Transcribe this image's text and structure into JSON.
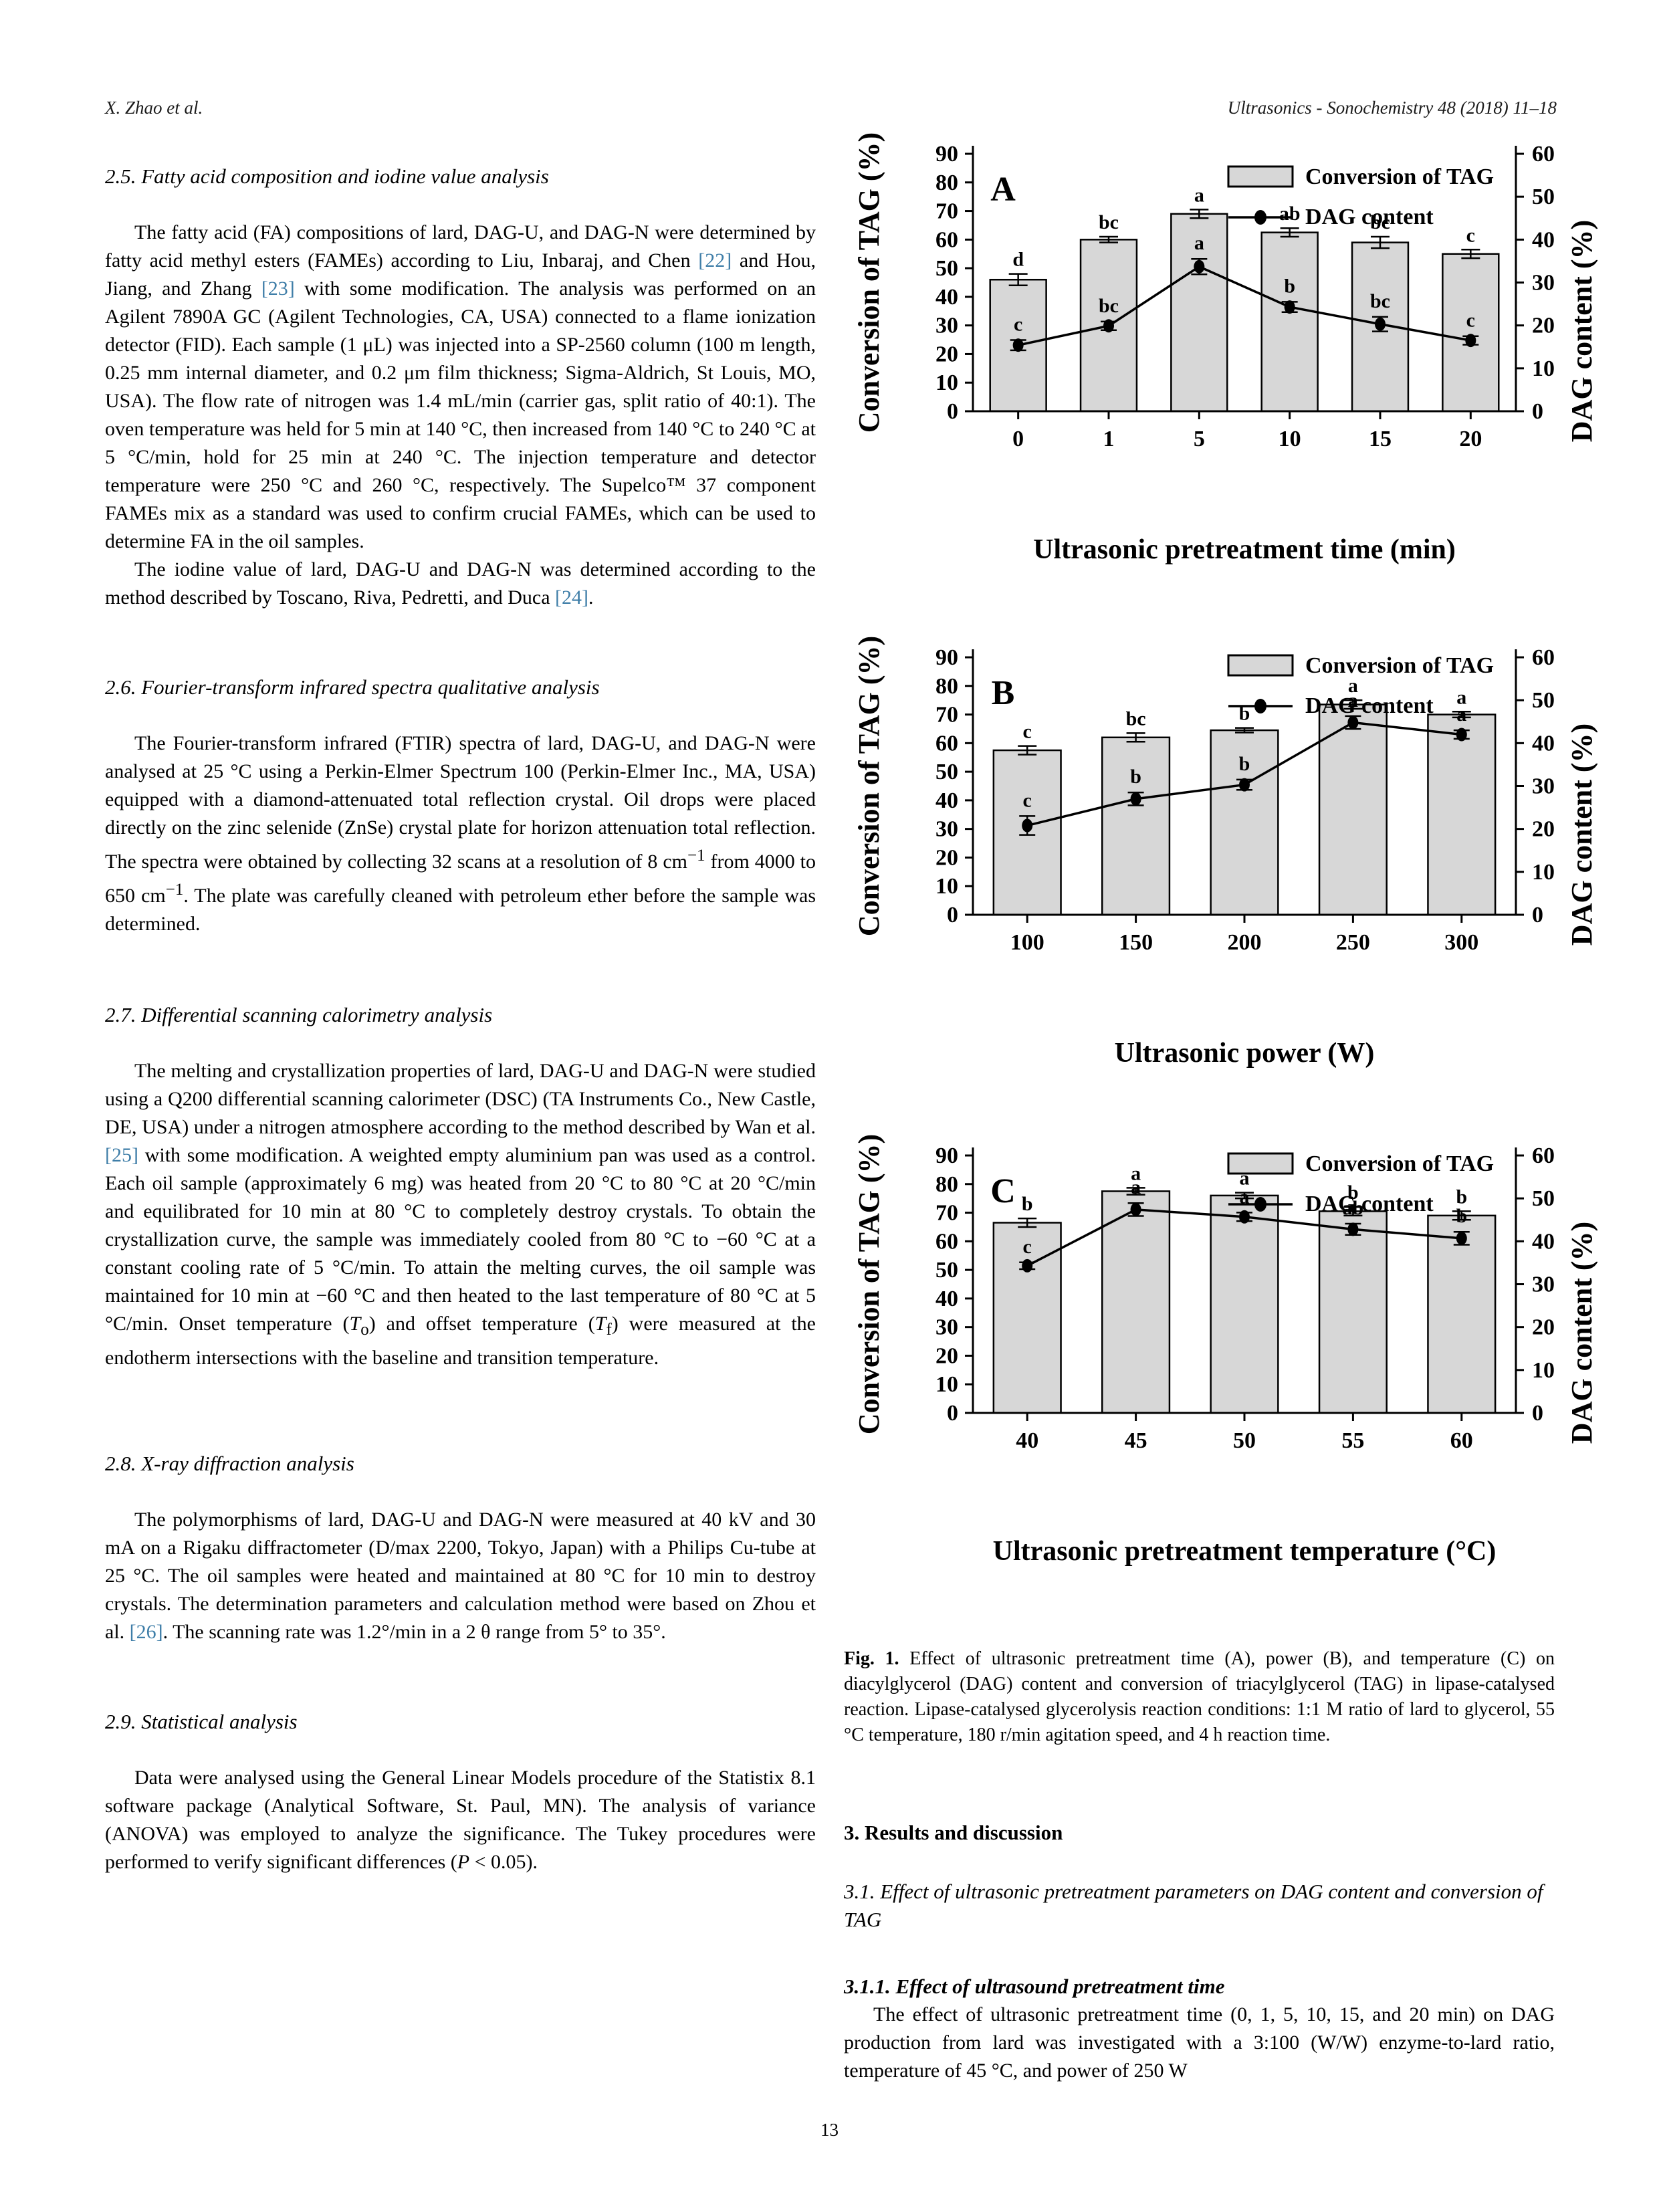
{
  "header": {
    "left": "X. Zhao et al.",
    "right": "Ultrasonics - Sonochemistry 48 (2018) 11–18"
  },
  "page_number": "13",
  "colors": {
    "citation": "#3f7ea8",
    "bar_fill": "#d7d7d7",
    "ink": "#000000"
  },
  "left_column": {
    "sections": [
      {
        "heading": "2.5. Fatty acid composition and iodine value analysis",
        "paragraphs": [
          {
            "segs": [
              {
                "t": "The fatty acid (FA) compositions of lard, DAG-U, and DAG-N were determined by fatty acid methyl esters (FAMEs) according to Liu, Inbaraj, and Chen "
              },
              {
                "t": "[22]",
                "c": true
              },
              {
                "t": " and Hou, Jiang, and Zhang "
              },
              {
                "t": "[23]",
                "c": true
              },
              {
                "t": " with some modification. The analysis was performed on an Agilent 7890A GC (Agilent Technologies, CA, USA) connected to a flame ionization detector (FID). Each sample (1 μL) was injected into a SP-2560 column (100 m length, 0.25 mm internal diameter, and 0.2 μm film thickness; Sigma-Aldrich, St Louis, MO, USA). The flow rate of nitrogen was 1.4 mL/min (carrier gas, split ratio of 40:1). The oven temperature was held for 5 min at 140 °C, then increased from 140 °C to 240 °C at 5 °C/min, hold for 25 min at 240 °C. The injection temperature and detector temperature were 250 °C and 260 °C, respectively. The Supelco™ 37 component FAMEs mix as a standard was used to confirm crucial FAMEs, which can be used to determine FA in the oil samples."
              }
            ]
          },
          {
            "segs": [
              {
                "t": "The iodine value of lard, DAG-U and DAG-N was determined according to the method described by Toscano, Riva, Pedretti, and Duca "
              },
              {
                "t": "[24]",
                "c": true
              },
              {
                "t": "."
              }
            ]
          }
        ]
      },
      {
        "heading": "2.6. Fourier-transform infrared spectra qualitative analysis",
        "paragraphs": [
          {
            "segs": [
              {
                "t": "The Fourier-transform infrared (FTIR) spectra of lard, DAG-U, and DAG-N were analysed at 25 °C using a Perkin-Elmer Spectrum 100 (Perkin-Elmer Inc., MA, USA) equipped with a diamond-attenuated total reflection crystal. Oil drops were placed directly on the zinc selenide (ZnSe) crystal plate for horizon attenuation total reflection. The spectra were obtained by collecting 32 scans at a resolution of 8 cm"
              },
              {
                "t": "−1",
                "sup": true
              },
              {
                "t": " from 4000 to 650 cm"
              },
              {
                "t": "−1",
                "sup": true
              },
              {
                "t": ". The plate was carefully cleaned with petroleum ether before the sample was determined."
              }
            ]
          }
        ]
      },
      {
        "heading": "2.7. Differential scanning calorimetry analysis",
        "paragraphs": [
          {
            "segs": [
              {
                "t": "The melting and crystallization properties of lard, DAG-U and DAG-N were studied using a Q200 differential scanning calorimeter (DSC) (TA Instruments Co., New Castle, DE, USA) under a nitrogen atmosphere according to the method described by Wan et al. "
              },
              {
                "t": "[25]",
                "c": true
              },
              {
                "t": " with some modification. A weighted empty aluminium pan was used as a control. Each oil sample (approximately 6 mg) was heated from 20 °C to 80 °C at 20 °C/min and equilibrated for 10 min at 80 °C to completely destroy crystals. To obtain the crystallization curve, the sample was immediately cooled from 80 °C to −60 °C at a constant cooling rate of 5 °C/min. To attain the melting curves, the oil sample was maintained for 10 min at −60 °C and then heated to the last temperature of 80 °C at 5 °C/min. Onset temperature ("
              },
              {
                "t": "T",
                "i": true
              },
              {
                "t": "o",
                "sub": true
              },
              {
                "t": ") and offset temperature ("
              },
              {
                "t": "T",
                "i": true
              },
              {
                "t": "f",
                "sub": true
              },
              {
                "t": ") were measured at the endotherm intersections with the baseline and transition temperature."
              }
            ]
          }
        ]
      },
      {
        "heading": "2.8. X-ray diffraction analysis",
        "paragraphs": [
          {
            "segs": [
              {
                "t": "The polymorphisms of lard, DAG-U and DAG-N were measured at 40 kV and 30 mA on a Rigaku diffractometer (D/max 2200, Tokyo, Japan) with a Philips Cu-tube at 25 °C. The oil samples were heated and maintained at 80 °C for 10 min to destroy crystals. The determination parameters and calculation method were based on Zhou et al. "
              },
              {
                "t": "[26]",
                "c": true
              },
              {
                "t": ". The scanning rate was 1.2°/min in a 2 θ range from 5° to 35°."
              }
            ]
          }
        ]
      },
      {
        "heading": "2.9. Statistical analysis",
        "paragraphs": [
          {
            "segs": [
              {
                "t": "Data were analysed using the General Linear Models procedure of the Statistix 8.1 software package (Analytical Software, St. Paul, MN). The analysis of variance (ANOVA) was employed to analyze the significance. The Tukey procedures were performed to verify significant differences ("
              },
              {
                "t": "P",
                "i": true
              },
              {
                "t": " < 0.05)."
              }
            ]
          }
        ]
      }
    ]
  },
  "right_column": {
    "caption_lead": "Fig. 1.",
    "caption_rest": " Effect of ultrasonic pretreatment time (A), power (B), and temperature (C) on diacylglycerol (DAG) content and conversion of triacylglycerol (TAG) in lipase-catalysed reaction. Lipase-catalysed glycerolysis reaction conditions: 1:1 M ratio of lard to glycerol, 55 °C temperature, 180 r/min agitation speed, and 4 h reaction time.",
    "results_heading": "3. Results and discussion",
    "sec31_heading": "3.1. Effect of ultrasonic pretreatment parameters on DAG content and conversion of TAG",
    "sec311_heading": "3.1.1. Effect of ultrasound pretreatment time",
    "sec311_paragraph": "The effect of ultrasonic pretreatment time (0, 1, 5, 10, 15, and 20 min) on DAG production from lard was investigated with a 3:100 (W/W) enzyme-to-lard ratio, temperature of 45 °C, and power of 250 W"
  },
  "chart_data": [
    {
      "type": "bar+line-dual-axis",
      "panel": "A",
      "title": "",
      "xlabel": "Ultrasonic pretreatment time (min)",
      "ylabel_left": "Conversion of TAG (%)",
      "ylabel_right": "DAG content (%)",
      "ylim_left": [
        0,
        90
      ],
      "ytick_step_left": 10,
      "ylim_right": [
        0,
        60
      ],
      "ytick_step_right": 10,
      "grid": false,
      "legend": [
        "Conversion of TAG",
        "DAG content"
      ],
      "legend_position": "top-right-inside",
      "categories": [
        "0",
        "1",
        "5",
        "10",
        "15",
        "20"
      ],
      "bars": {
        "name": "Conversion of TAG",
        "axis": "left",
        "values": [
          46,
          60,
          69,
          62.5,
          59,
          55
        ],
        "errors": [
          2,
          1,
          1.5,
          1.5,
          2,
          1.5
        ],
        "sig_labels": [
          "d",
          "bc",
          "a",
          "ab",
          "bc",
          "c"
        ]
      },
      "line": {
        "name": "DAG content",
        "axis": "right",
        "values": [
          15.4,
          19.9,
          33.7,
          24.3,
          20.3,
          16.5
        ],
        "errors": [
          1.2,
          1.0,
          1.8,
          1.2,
          1.7,
          1.0
        ],
        "sig_labels": [
          "c",
          "bc",
          "a",
          "b",
          "bc",
          "c"
        ]
      }
    },
    {
      "type": "bar+line-dual-axis",
      "panel": "B",
      "title": "",
      "xlabel": "Ultrasonic power (W)",
      "ylabel_left": "Conversion of TAG (%)",
      "ylabel_right": "DAG content (%)",
      "ylim_left": [
        0,
        90
      ],
      "ytick_step_left": 10,
      "ylim_right": [
        0,
        60
      ],
      "ytick_step_right": 10,
      "grid": false,
      "legend": [
        "Conversion of TAG",
        "DAG content"
      ],
      "legend_position": "top-right-inside",
      "categories": [
        "100",
        "150",
        "200",
        "250",
        "300"
      ],
      "bars": {
        "name": "Conversion of TAG",
        "axis": "left",
        "values": [
          57.5,
          62,
          64.5,
          73.5,
          70
        ],
        "errors": [
          1.5,
          1.5,
          0.8,
          1.5,
          1.0
        ],
        "sig_labels": [
          "c",
          "bc",
          "b",
          "a",
          "a"
        ]
      },
      "line": {
        "name": "DAG content",
        "axis": "right",
        "values": [
          20.8,
          27.0,
          30.3,
          44.8,
          42.0
        ],
        "errors": [
          2.2,
          1.5,
          1.2,
          1.5,
          1.0
        ],
        "sig_labels": [
          "c",
          "b",
          "b",
          "a",
          "a"
        ]
      }
    },
    {
      "type": "bar+line-dual-axis",
      "panel": "C",
      "title": "",
      "xlabel": "Ultrasonic pretreatment temperature (°C)",
      "ylabel_left": "Conversion of TAG (%)",
      "ylabel_right": "DAG content (%)",
      "ylim_left": [
        0,
        90
      ],
      "ytick_step_left": 10,
      "ylim_right": [
        0,
        60
      ],
      "ytick_step_right": 10,
      "grid": false,
      "legend": [
        "Conversion of TAG",
        "DAG content"
      ],
      "legend_position": "top-right-inside",
      "categories": [
        "40",
        "45",
        "50",
        "55",
        "60"
      ],
      "bars": {
        "name": "Conversion of TAG",
        "axis": "left",
        "values": [
          66.5,
          77.5,
          76,
          70.5,
          69
        ],
        "errors": [
          1.5,
          1.2,
          1.0,
          1.5,
          1.5
        ],
        "sig_labels": [
          "b",
          "a",
          "a",
          "b",
          "b"
        ]
      },
      "line": {
        "name": "DAG content",
        "axis": "right",
        "values": [
          34.3,
          47.4,
          45.7,
          42.8,
          40.7
        ],
        "errors": [
          0.8,
          1.5,
          1.0,
          1.3,
          1.5
        ],
        "sig_labels": [
          "c",
          "a",
          "a",
          "ab",
          "b"
        ]
      }
    }
  ]
}
